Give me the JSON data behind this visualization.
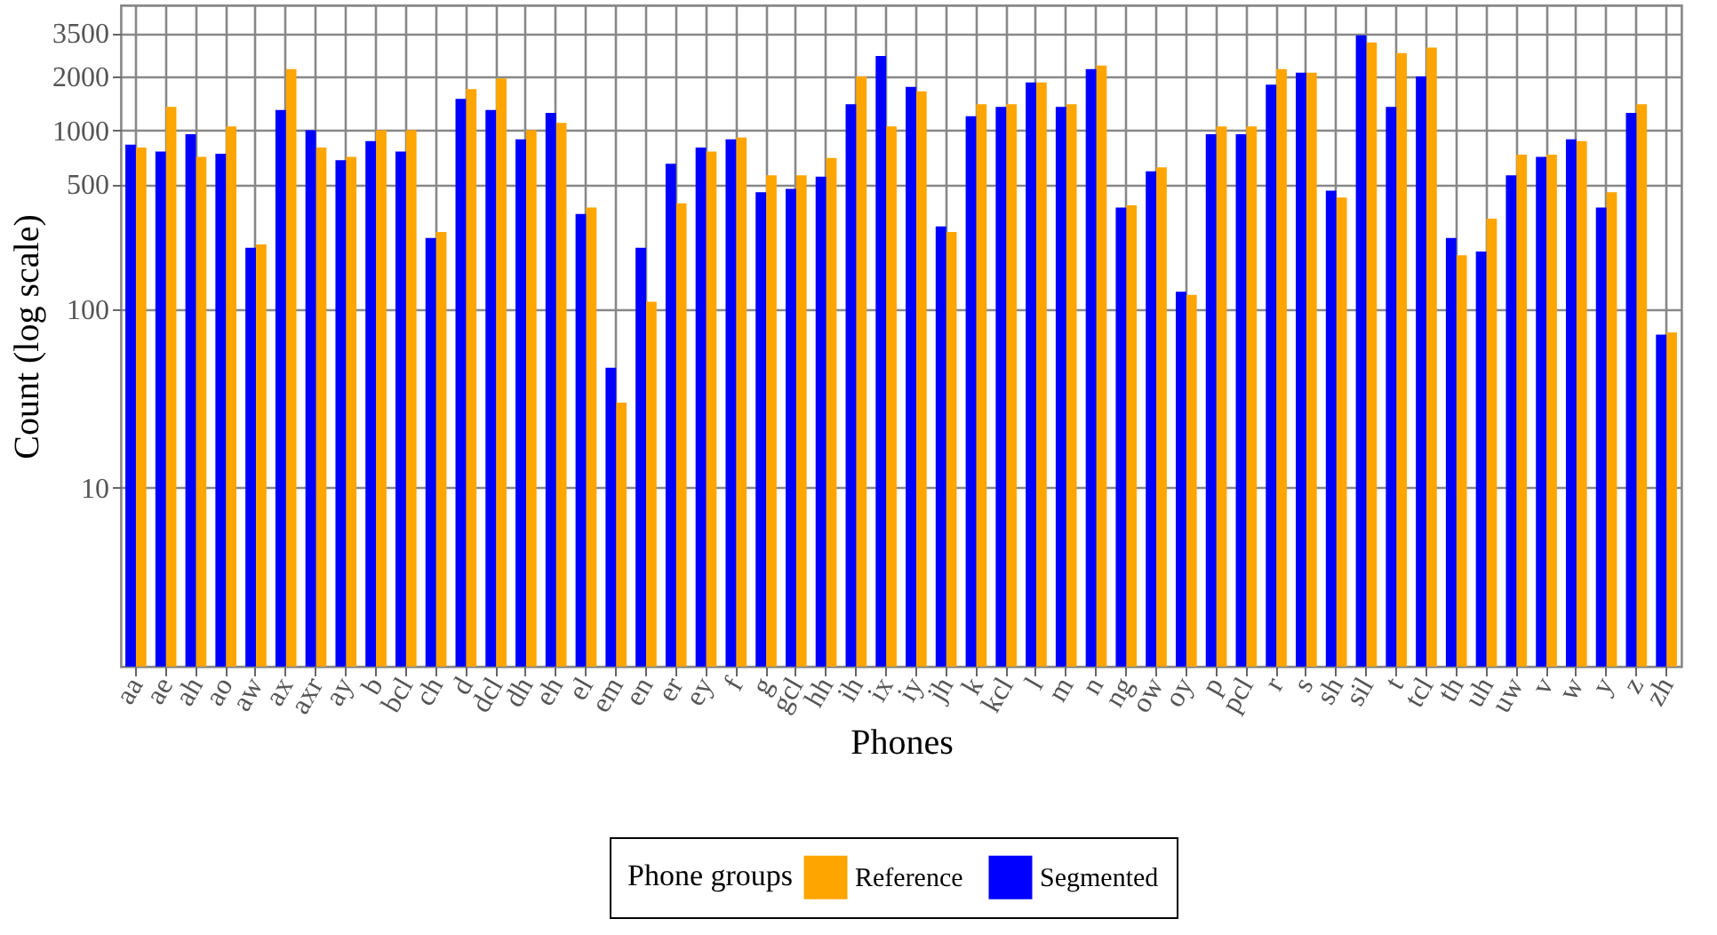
{
  "chart_data": {
    "type": "bar",
    "xlabel": "Phones",
    "ylabel": "Count (log scale)",
    "legend_title": "Phone groups",
    "log": "y",
    "grid": true,
    "legend": "bottom",
    "ylim": [
      1,
      5000
    ],
    "yticks": [
      10,
      100,
      500,
      1000,
      2000,
      3500
    ],
    "categories": [
      "aa",
      "ae",
      "ah",
      "ao",
      "aw",
      "ax",
      "axr",
      "ay",
      "b",
      "bcl",
      "ch",
      "d",
      "dcl",
      "dh",
      "eh",
      "el",
      "em",
      "en",
      "er",
      "ey",
      "f",
      "g",
      "gcl",
      "hh",
      "ih",
      "ix",
      "iy",
      "jh",
      "k",
      "kcl",
      "l",
      "m",
      "n",
      "ng",
      "ow",
      "oy",
      "p",
      "pcl",
      "r",
      "s",
      "sh",
      "sil",
      "t",
      "tcl",
      "th",
      "uh",
      "uw",
      "v",
      "w",
      "y",
      "z",
      "zh"
    ],
    "series": [
      {
        "name": "Reference",
        "color": "#ffa500",
        "values": [
          800,
          1350,
          710,
          1050,
          230,
          2200,
          800,
          710,
          1000,
          1000,
          270,
          1700,
          1950,
          1000,
          1100,
          370,
          30,
          110,
          390,
          760,
          910,
          560,
          560,
          700,
          2000,
          1050,
          1650,
          270,
          1400,
          1400,
          1850,
          1400,
          2300,
          380,
          620,
          120,
          1050,
          1050,
          2200,
          2100,
          420,
          3100,
          2700,
          2900,
          200,
          320,
          730,
          730,
          870,
          450,
          1400,
          74
        ]
      },
      {
        "name": "Segmented",
        "color": "#0000ff",
        "values": [
          830,
          760,
          950,
          740,
          220,
          1300,
          1000,
          680,
          870,
          760,
          250,
          1500,
          1300,
          890,
          1250,
          340,
          47,
          220,
          650,
          800,
          890,
          450,
          470,
          550,
          1400,
          2600,
          1750,
          290,
          1200,
          1350,
          1850,
          1350,
          2200,
          370,
          590,
          125,
          950,
          950,
          1800,
          2100,
          460,
          3400,
          1350,
          2000,
          250,
          210,
          560,
          710,
          890,
          370,
          1250,
          72
        ]
      }
    ]
  }
}
